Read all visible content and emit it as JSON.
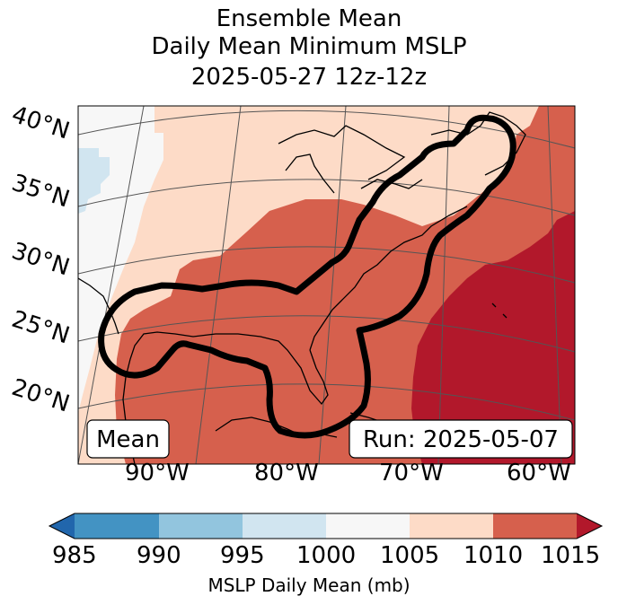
{
  "title": {
    "line1": "Ensemble Mean",
    "line2": "Daily Mean Minimum MSLP",
    "line3": "2025-05-27 12z-12z"
  },
  "lat_labels": [
    "40°N",
    "35°N",
    "30°N",
    "25°N",
    "20°N"
  ],
  "lon_labels": [
    "90°W",
    "80°W",
    "70°W",
    "60°W"
  ],
  "boxes": {
    "left": "Mean",
    "right": "Run: 2025-05-07"
  },
  "colorbar": {
    "ticks": [
      "985",
      "990",
      "995",
      "1000",
      "1005",
      "1010",
      "1015"
    ],
    "colors": [
      "#2166ac",
      "#4393c3",
      "#92c5de",
      "#d1e5f0",
      "#f7f7f7",
      "#fddbc7",
      "#d6604d",
      "#b2182b"
    ],
    "label": "MSLP Daily Mean (mb)"
  }
}
